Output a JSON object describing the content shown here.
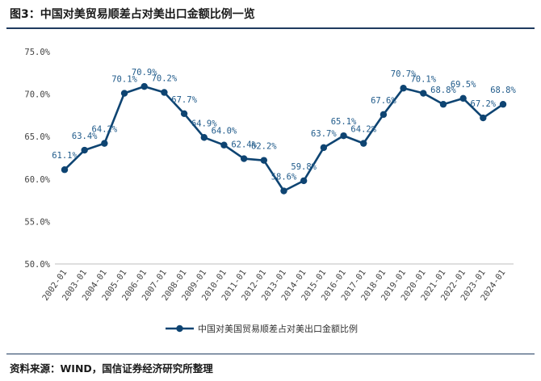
{
  "header": {
    "title": "图3：中国对美贸易顺差占对美出口金额比例一览"
  },
  "footer": {
    "source": "资料来源：WIND，国信证券经济研究所整理"
  },
  "colors": {
    "series": "#0e4472",
    "label": "#1f5a8a",
    "rule": "#1f3b5f"
  },
  "chart_data": {
    "type": "line",
    "title": "",
    "xlabel": "",
    "ylabel": "",
    "ylim": [
      50.0,
      75.0
    ],
    "yticks": [
      "50.0%",
      "55.0%",
      "60.0%",
      "65.0%",
      "70.0%",
      "75.0%"
    ],
    "grid": false,
    "legend_position": "bottom",
    "categories": [
      "2002-01",
      "2003-01",
      "2004-01",
      "2005-01",
      "2006-01",
      "2007-01",
      "2008-01",
      "2009-01",
      "2010-01",
      "2011-01",
      "2012-01",
      "2013-01",
      "2014-01",
      "2015-01",
      "2016-01",
      "2017-01",
      "2018-01",
      "2019-01",
      "2020-01",
      "2021-01",
      "2022-01",
      "2023-01",
      "2024-01"
    ],
    "series": [
      {
        "name": "中国对美国贸易顺差占对美出口金额比例",
        "values": [
          61.1,
          63.4,
          64.2,
          70.1,
          70.9,
          70.2,
          67.7,
          64.9,
          64.0,
          62.4,
          62.2,
          58.6,
          59.8,
          63.7,
          65.1,
          64.2,
          67.6,
          70.7,
          70.1,
          68.8,
          69.5,
          67.2,
          68.8
        ],
        "labels": [
          "61.1%",
          "63.4%",
          "64.2%",
          "70.1%",
          "70.9%",
          "70.2%",
          "67.7%",
          "64.9%",
          "64.0%",
          "62.4%",
          "62.2%",
          "58.6%",
          "59.8%",
          "63.7%",
          "65.1%",
          "64.2%",
          "67.6%",
          "70.7%",
          "70.1%",
          "68.8%",
          "69.5%",
          "67.2%",
          "68.8%"
        ]
      }
    ]
  }
}
